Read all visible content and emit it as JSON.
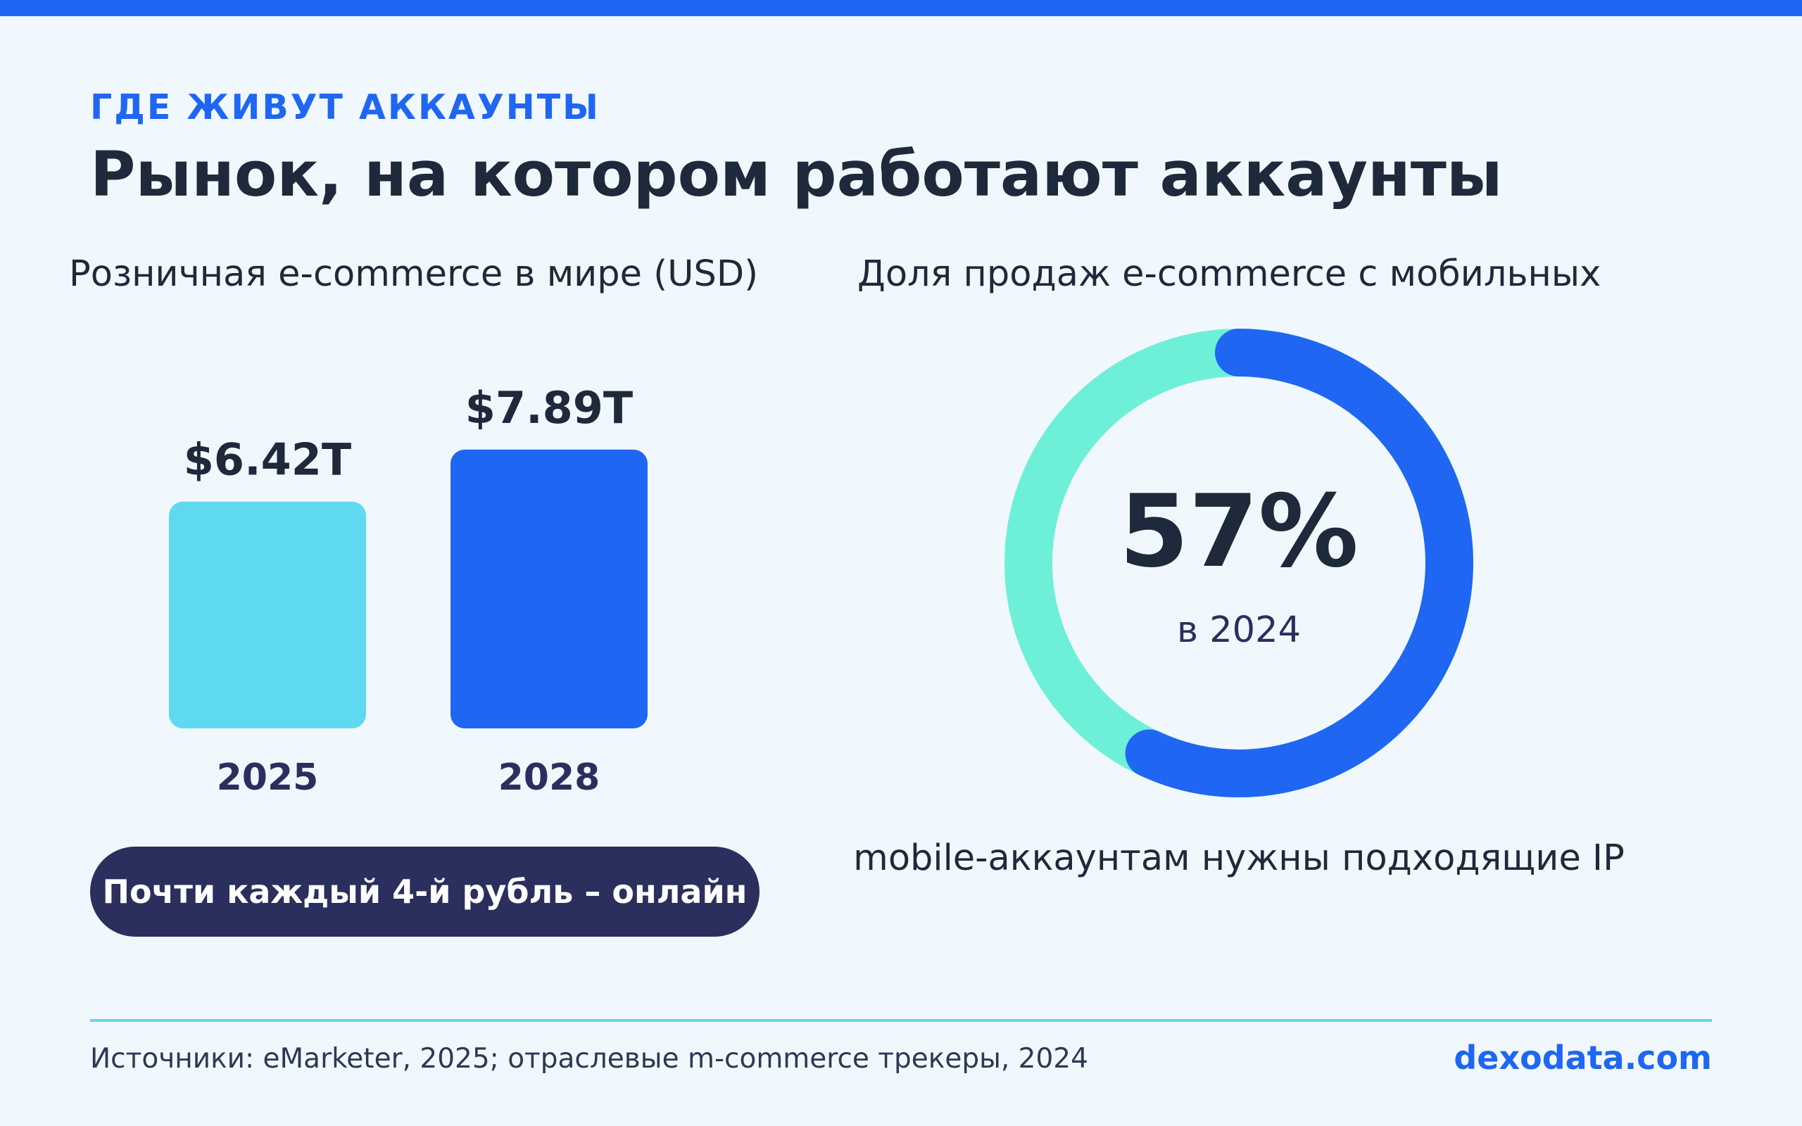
{
  "header": {
    "eyebrow": "ГДЕ ЖИВУТ АККАУНТЫ",
    "title": "Рынок, на котором работают аккаунты"
  },
  "left_panel": {
    "subtitle": "Розничная e-commerce в мире (USD)",
    "callout": "Почти каждый 4-й рубль – онлайн"
  },
  "right_panel": {
    "subtitle": "Доля продаж e-commerce с мобильных",
    "center_value": "57%",
    "center_sub": "в 2024",
    "caption": "mobile-аккаунтам нужны подходящие IP"
  },
  "footer": {
    "sources": "Источники: eMarketer, 2025; отраслевые m-commerce трекеры, 2024",
    "brand": "dexodata.com"
  },
  "colors": {
    "accent": "#1f66f2",
    "bar_2025": "#5fd9ef",
    "bar_2028": "#1f66f2",
    "donut_main": "#1f66f2",
    "donut_rest": "#6ef0d8",
    "pill": "#2a2f5e"
  },
  "chart_data": [
    {
      "type": "bar",
      "title": "Розничная e-commerce в мире (USD)",
      "categories": [
        "2025",
        "2028"
      ],
      "values": [
        6.42,
        7.89
      ],
      "value_labels": [
        "$6.42T",
        "$7.89T"
      ],
      "unit": "T USD"
    },
    {
      "type": "pie",
      "title": "Доля продаж e-commerce с мобильных",
      "values": [
        57,
        43
      ],
      "center_label": "57%",
      "center_sub": "в 2024"
    }
  ]
}
